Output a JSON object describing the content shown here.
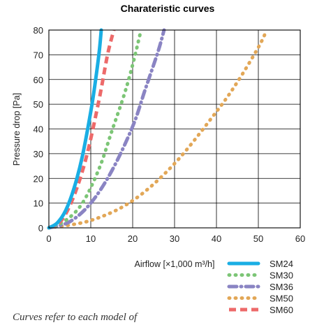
{
  "footnote": "Curves refer to each model of",
  "chart_data": {
    "type": "line",
    "title": "Charateristic curves",
    "xlabel": "Airflow [×1,000 m³/h]",
    "ylabel": "Pressure drop  [Pa]",
    "xlim": [
      0,
      60
    ],
    "ylim": [
      0,
      80
    ],
    "xticks": [
      0,
      10,
      20,
      30,
      40,
      50,
      60
    ],
    "yticks": [
      0,
      10,
      20,
      30,
      40,
      50,
      60,
      70,
      80
    ],
    "grid": true,
    "legend_position": "bottom-right",
    "series": [
      {
        "name": "SM24",
        "color": "#1aaee4",
        "dash": "solid",
        "x": [
          0,
          2,
          4,
          6,
          8,
          10,
          11,
          12,
          12.5
        ],
        "y": [
          0,
          2,
          7,
          16,
          29,
          47,
          58,
          71,
          80
        ]
      },
      {
        "name": "SM30",
        "color": "#7cc576",
        "dash": "dot",
        "x": [
          0,
          4,
          8,
          12,
          15,
          18,
          20,
          22
        ],
        "y": [
          0,
          3,
          10,
          24,
          39,
          54,
          66,
          80
        ]
      },
      {
        "name": "SM36",
        "color": "#8a84c3",
        "dash": "dashdot",
        "x": [
          0,
          5,
          10,
          15,
          20,
          23,
          26,
          27.5
        ],
        "y": [
          0,
          2.5,
          10,
          23,
          41,
          56,
          71,
          80
        ]
      },
      {
        "name": "SM50",
        "color": "#e2a757",
        "dash": "dot",
        "x": [
          0,
          10,
          20,
          30,
          40,
          45,
          50,
          52
        ],
        "y": [
          0,
          3,
          11,
          26,
          47,
          59,
          73,
          80
        ]
      },
      {
        "name": "SM60",
        "color": "#ed6a6a",
        "dash": "dash",
        "x": [
          0,
          3,
          6,
          9,
          12,
          14,
          15.5
        ],
        "y": [
          0,
          3,
          13,
          29,
          52,
          70,
          80
        ]
      }
    ]
  }
}
